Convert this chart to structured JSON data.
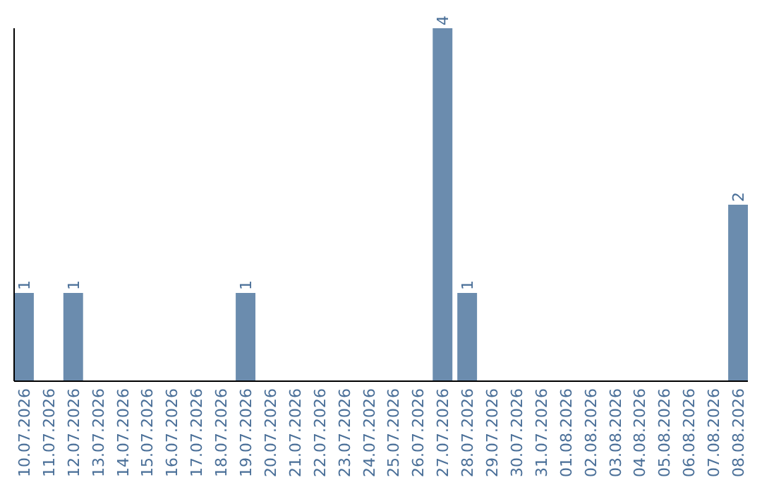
{
  "chart_data": {
    "type": "bar",
    "categories": [
      "10.07.2026",
      "11.07.2026",
      "12.07.2026",
      "13.07.2026",
      "14.07.2026",
      "15.07.2026",
      "16.07.2026",
      "17.07.2026",
      "18.07.2026",
      "19.07.2026",
      "20.07.2026",
      "21.07.2026",
      "22.07.2026",
      "23.07.2026",
      "24.07.2026",
      "25.07.2026",
      "26.07.2026",
      "27.07.2026",
      "28.07.2026",
      "29.07.2026",
      "30.07.2026",
      "31.07.2026",
      "01.08.2026",
      "02.08.2026",
      "03.08.2026",
      "04.08.2026",
      "05.08.2026",
      "06.08.2026",
      "07.08.2026",
      "08.08.2026"
    ],
    "values": [
      1,
      0,
      1,
      0,
      0,
      0,
      0,
      0,
      0,
      1,
      0,
      0,
      0,
      0,
      0,
      0,
      0,
      4,
      1,
      0,
      0,
      0,
      0,
      0,
      0,
      0,
      0,
      0,
      0,
      2
    ],
    "value_labels": [
      "1",
      null,
      "1",
      null,
      null,
      null,
      null,
      null,
      null,
      "1",
      null,
      null,
      null,
      null,
      null,
      null,
      null,
      "4",
      "1",
      null,
      null,
      null,
      null,
      null,
      null,
      null,
      null,
      null,
      null,
      "2"
    ],
    "color": "#6b8cae",
    "ylim": [
      0,
      4
    ],
    "tick_labels": "x"
  }
}
